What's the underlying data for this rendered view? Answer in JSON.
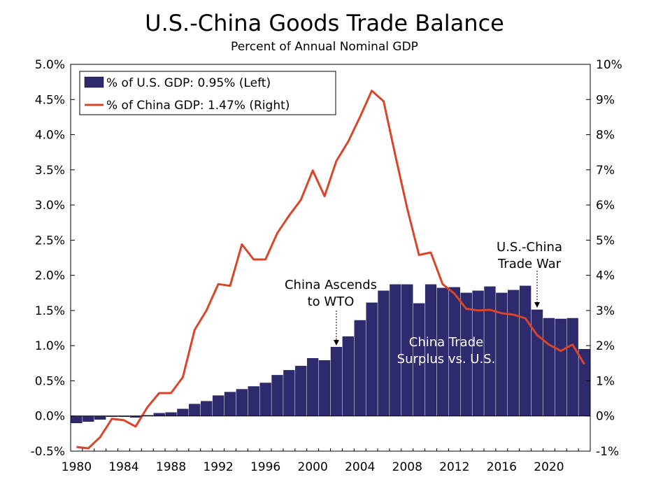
{
  "title": "U.S.-China Goods Trade Balance",
  "subtitle": "Percent of Annual Nominal GDP",
  "colors": {
    "bars": "#2e2a6e",
    "line": "#d9452b"
  },
  "chart_data": {
    "type": "bar+line",
    "title": "U.S.-China Goods Trade Balance",
    "subtitle": "Percent of Annual Nominal GDP",
    "x": [
      1980,
      1981,
      1982,
      1983,
      1984,
      1985,
      1986,
      1987,
      1988,
      1989,
      1990,
      1991,
      1992,
      1993,
      1994,
      1995,
      1996,
      1997,
      1998,
      1999,
      2000,
      2001,
      2002,
      2003,
      2004,
      2005,
      2006,
      2007,
      2008,
      2009,
      2010,
      2011,
      2012,
      2013,
      2014,
      2015,
      2016,
      2017,
      2018,
      2019,
      2020,
      2021,
      2022,
      2023
    ],
    "x_tick_labels": [
      "1980",
      "1984",
      "1988",
      "1992",
      "1996",
      "2000",
      "2004",
      "2008",
      "2012",
      "2016",
      "2020"
    ],
    "series": [
      {
        "name": "% of U.S. GDP: 0.95% (Left)",
        "type": "bar",
        "axis": "left",
        "values": [
          -0.1,
          -0.08,
          -0.05,
          -0.01,
          -0.01,
          -0.02,
          0.01,
          0.04,
          0.05,
          0.1,
          0.17,
          0.21,
          0.29,
          0.34,
          0.38,
          0.42,
          0.47,
          0.58,
          0.65,
          0.71,
          0.82,
          0.79,
          0.98,
          1.13,
          1.36,
          1.61,
          1.78,
          1.87,
          1.87,
          1.6,
          1.87,
          1.82,
          1.83,
          1.75,
          1.78,
          1.84,
          1.75,
          1.79,
          1.85,
          1.51,
          1.39,
          1.38,
          1.39,
          0.95
        ]
      },
      {
        "name": "% of China GDP: 1.47% (Right)",
        "type": "line",
        "axis": "right",
        "values": [
          -0.88,
          -0.92,
          -0.6,
          -0.08,
          -0.12,
          -0.3,
          0.25,
          0.65,
          0.65,
          1.1,
          2.45,
          3.0,
          3.75,
          3.7,
          4.88,
          4.45,
          4.45,
          5.2,
          5.7,
          6.15,
          6.98,
          6.25,
          7.25,
          7.8,
          8.5,
          9.25,
          8.95,
          7.4,
          5.9,
          4.58,
          4.65,
          3.75,
          3.48,
          3.05,
          3.0,
          3.02,
          2.92,
          2.88,
          2.78,
          2.3,
          2.03,
          1.85,
          2.03,
          1.47
        ]
      }
    ],
    "y_left": {
      "min": -0.5,
      "max": 5.0,
      "step": 0.5,
      "tick_labels": [
        "-0.5%",
        "0.0%",
        "0.5%",
        "1.0%",
        "1.5%",
        "2.0%",
        "2.5%",
        "3.0%",
        "3.5%",
        "4.0%",
        "4.5%",
        "5.0%"
      ]
    },
    "y_right": {
      "min": -1,
      "max": 10,
      "step": 1,
      "tick_labels": [
        "-1%",
        "0%",
        "1%",
        "2%",
        "3%",
        "4%",
        "5%",
        "6%",
        "7%",
        "8%",
        "9%",
        "10%"
      ]
    },
    "legend_placement": "top-left",
    "grid": false,
    "annotations": [
      {
        "id": "wto",
        "lines": [
          "China Ascends",
          "to WTO"
        ],
        "year": 2002,
        "arrow": true
      },
      {
        "id": "tradewar",
        "lines": [
          "U.S.-China",
          "Trade War"
        ],
        "year": 2019,
        "arrow": true
      },
      {
        "id": "surplus",
        "lines": [
          "China Trade",
          "Surplus vs. U.S."
        ],
        "arrow": false
      }
    ]
  }
}
